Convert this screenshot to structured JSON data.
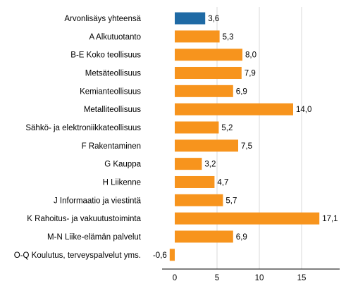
{
  "chart_data": {
    "type": "bar",
    "orientation": "horizontal",
    "categories": [
      "Arvonlisäys yhteensä",
      "A Alkutuotanto",
      "B-E Koko teollisuus",
      "Metsäteollisuus",
      "Kemianteollisuus",
      "Metalliteollisuus",
      "Sähkö- ja elektroniikkateollisuus",
      "F Rakentaminen",
      "G Kauppa",
      "H Liikenne",
      "J Informaatio ja viestintä",
      "K Rahoitus- ja vakuutustoiminta",
      "M-N Liike-elämän palvelut",
      "O-Q Koulutus, terveyspalvelut yms."
    ],
    "values": [
      3.6,
      5.3,
      8.0,
      7.9,
      6.9,
      14.0,
      5.2,
      7.5,
      3.2,
      4.7,
      5.7,
      17.1,
      6.9,
      -0.6
    ],
    "value_labels": [
      "3,6",
      "5,3",
      "8,0",
      "7,9",
      "6,9",
      "14,0",
      "5,2",
      "7,5",
      "3,2",
      "4,7",
      "5,7",
      "17,1",
      "6,9",
      "-0,6"
    ],
    "highlight_index": 0,
    "colors": {
      "highlight": "#1f6aa5",
      "default": "#f7941d"
    },
    "xlim": [
      -1.5,
      19.5
    ],
    "xticks": [
      0,
      5,
      10,
      15
    ],
    "xtick_labels": [
      "0",
      "5",
      "10",
      "15"
    ],
    "grid": true,
    "title": "",
    "xlabel": "",
    "ylabel": ""
  }
}
